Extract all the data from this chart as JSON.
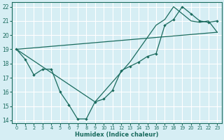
{
  "xlabel": "Humidex (Indice chaleur)",
  "bg_color": "#d6eef4",
  "grid_color": "#ffffff",
  "line_color": "#1a6b5e",
  "xlim": [
    -0.5,
    23.5
  ],
  "ylim": [
    13.8,
    22.3
  ],
  "xticks": [
    0,
    1,
    2,
    3,
    4,
    5,
    6,
    7,
    8,
    9,
    10,
    11,
    12,
    13,
    14,
    15,
    16,
    17,
    18,
    19,
    20,
    21,
    22,
    23
  ],
  "yticks": [
    14,
    15,
    16,
    17,
    18,
    19,
    20,
    21,
    22
  ],
  "line1_x": [
    0,
    1,
    2,
    3,
    4,
    5,
    6,
    7,
    8,
    9,
    10,
    11,
    12,
    13,
    14,
    15,
    16,
    17,
    18,
    19,
    20,
    21,
    22,
    23
  ],
  "line1_y": [
    19.0,
    18.3,
    17.2,
    17.6,
    17.6,
    16.0,
    15.1,
    14.1,
    14.1,
    15.3,
    15.5,
    16.1,
    17.5,
    17.8,
    18.1,
    18.5,
    18.7,
    20.7,
    21.1,
    22.0,
    21.5,
    21.0,
    20.9,
    21.0
  ],
  "line2_x": [
    0,
    23
  ],
  "line2_y": [
    19.0,
    20.2
  ],
  "line3_x": [
    0,
    9,
    13,
    16,
    17,
    18,
    19,
    20,
    21,
    22,
    23
  ],
  "line3_y": [
    19.0,
    15.3,
    18.1,
    20.7,
    21.1,
    22.0,
    21.5,
    21.0,
    20.9,
    21.0,
    20.2
  ]
}
